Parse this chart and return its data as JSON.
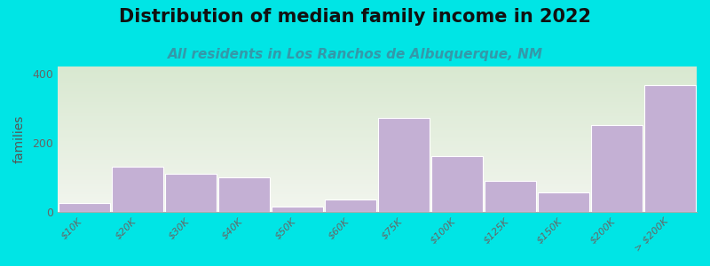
{
  "title": "Distribution of median family income in 2022",
  "subtitle": "All residents in Los Ranchos de Albuquerque, NM",
  "categories": [
    "$10K",
    "$20K",
    "$30K",
    "$40K",
    "$50K",
    "$60K",
    "$75K",
    "$100K",
    "$125K",
    "$150K",
    "$200K",
    "> $200K"
  ],
  "values": [
    25,
    130,
    110,
    100,
    15,
    35,
    270,
    160,
    90,
    55,
    250,
    365
  ],
  "bar_color": "#c4b0d4",
  "background_outer": "#00e5e5",
  "background_top_color": "#d8e8d0",
  "background_bottom_color": "#f2f5ee",
  "ylabel": "families",
  "ylim": [
    0,
    420
  ],
  "yticks": [
    0,
    200,
    400
  ],
  "title_fontsize": 15,
  "subtitle_fontsize": 11,
  "subtitle_color": "#3399aa",
  "title_color": "#111111",
  "ylabel_color": "#555555",
  "tick_label_color": "#666666",
  "figsize": [
    8.0,
    3.0
  ],
  "dpi": 100
}
